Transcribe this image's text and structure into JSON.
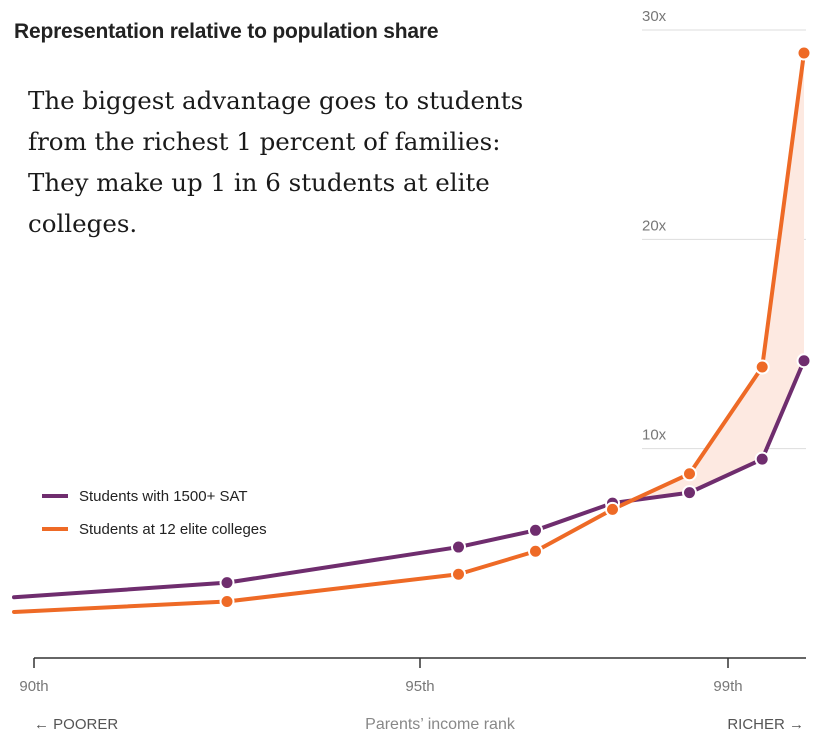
{
  "chart_data": {
    "type": "line",
    "title": "Representation relative to population share",
    "annotation": "The biggest advantage goes to students from the richest 1 percent of families: They make up 1 in 6 students at elite colleges.",
    "xlabel": "Parents’ income rank",
    "xlabel_left": "← POORER",
    "xlabel_right": "RICHER →",
    "x_ticks": [
      {
        "value": 90,
        "label": "90th"
      },
      {
        "value": 95,
        "label": "95th"
      },
      {
        "value": 99,
        "label": "99th"
      }
    ],
    "y_ticks": [
      {
        "value": 10,
        "label": "10x"
      },
      {
        "value": 20,
        "label": "20x"
      },
      {
        "value": 30,
        "label": "30x"
      }
    ],
    "xlim": [
      89.75,
      100.1
    ],
    "ylim": [
      0,
      30
    ],
    "grid": true,
    "legend_position": "bottom-left",
    "shaded_gap_color": "#fde9e1",
    "series": [
      {
        "name": "Students with 1500+ SAT",
        "color": "#6f2d6e",
        "line_x": [
          89.75,
          92.5,
          95.5,
          96.5,
          97.5,
          98.5,
          99.45,
          100
        ],
        "line_y": [
          2.9,
          3.6,
          5.3,
          6.1,
          7.4,
          7.9,
          9.5,
          14.2
        ],
        "markers_x": [
          92.5,
          95.5,
          96.5,
          97.5,
          98.5,
          99.45,
          100
        ],
        "markers_y": [
          3.6,
          5.3,
          6.1,
          7.4,
          7.9,
          9.5,
          14.2
        ]
      },
      {
        "name": "Students at 12 elite colleges",
        "color": "#ee6a26",
        "line_x": [
          89.75,
          92.5,
          95.5,
          96.5,
          97.5,
          98.5,
          99.45,
          100
        ],
        "line_y": [
          2.2,
          2.7,
          4.0,
          5.1,
          7.1,
          8.8,
          13.9,
          28.9
        ],
        "markers_x": [
          92.5,
          95.5,
          96.5,
          97.5,
          98.5,
          99.45,
          100
        ],
        "markers_y": [
          2.7,
          4.0,
          5.1,
          7.1,
          8.8,
          13.9,
          28.9
        ]
      }
    ]
  }
}
